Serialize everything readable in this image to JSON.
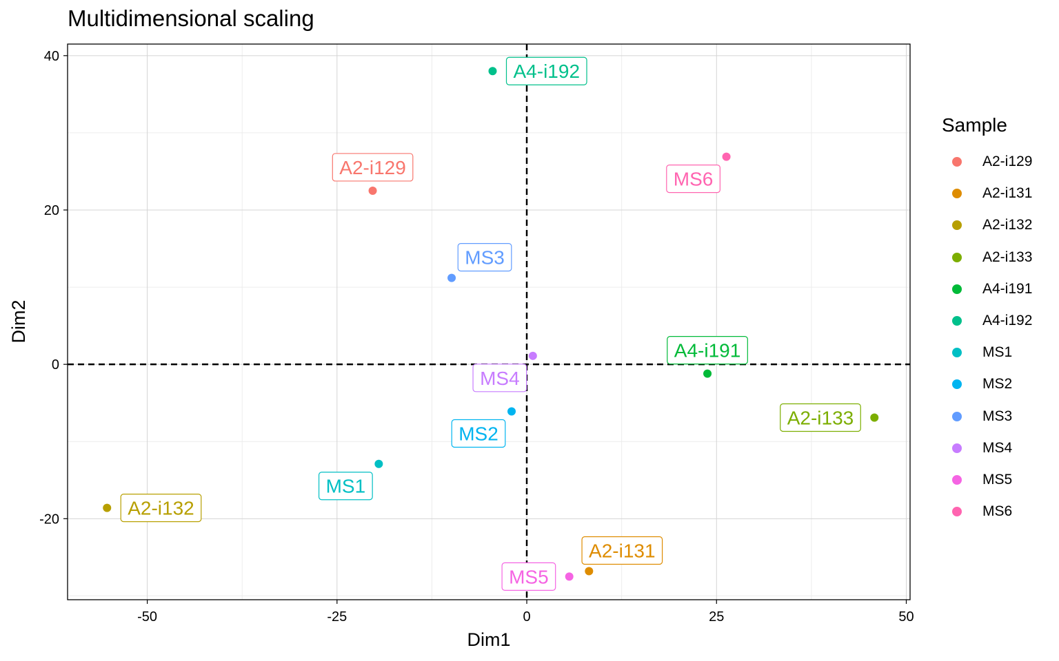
{
  "chart_data": {
    "type": "scatter",
    "title": "Multidimensional scaling",
    "xlabel": "Dim1",
    "ylabel": "Dim2",
    "xlim": [
      -60.5,
      50.5
    ],
    "ylim": [
      -30.5,
      41.5
    ],
    "x_ticks": [
      -50,
      -25,
      0,
      25,
      50
    ],
    "y_ticks": [
      -20,
      0,
      20,
      40
    ],
    "x_tick_labels": [
      "-50",
      "-25",
      "0",
      "25",
      "50"
    ],
    "y_tick_labels": [
      "-20",
      "0",
      "20",
      "40"
    ],
    "grid": true,
    "reference_lines": {
      "x": 0,
      "y": 0,
      "style": "dashed"
    },
    "legend_title": "Sample",
    "legend_position": "right",
    "points": [
      {
        "label": "A2-i129",
        "x": -20.3,
        "y": 22.5,
        "color": "#F8766D",
        "label_pos": "above"
      },
      {
        "label": "A2-i131",
        "x": 8.2,
        "y": -26.8,
        "color": "#DE8C00",
        "label_pos": "above-right"
      },
      {
        "label": "A2-i132",
        "x": -55.3,
        "y": -18.6,
        "color": "#B79F00",
        "label_pos": "right"
      },
      {
        "label": "A2-i133",
        "x": 45.8,
        "y": -6.9,
        "color": "#7CAE00",
        "label_pos": "left"
      },
      {
        "label": "A4-i191",
        "x": 23.8,
        "y": -1.2,
        "color": "#00BA38",
        "label_pos": "above"
      },
      {
        "label": "A4-i192",
        "x": -4.5,
        "y": 38.0,
        "color": "#00C08B",
        "label_pos": "right"
      },
      {
        "label": "MS1",
        "x": -19.5,
        "y": -12.9,
        "color": "#00BFC4",
        "label_pos": "below-left"
      },
      {
        "label": "MS2",
        "x": -2.0,
        "y": -6.1,
        "color": "#00B4F0",
        "label_pos": "below-left"
      },
      {
        "label": "MS3",
        "x": -9.9,
        "y": 11.2,
        "color": "#619CFF",
        "label_pos": "above-right"
      },
      {
        "label": "MS4",
        "x": 0.8,
        "y": 1.1,
        "color": "#C77CFF",
        "label_pos": "below-left"
      },
      {
        "label": "MS5",
        "x": 5.6,
        "y": -27.5,
        "color": "#F564E3",
        "label_pos": "left"
      },
      {
        "label": "MS6",
        "x": 26.3,
        "y": 26.9,
        "color": "#FF64B0",
        "label_pos": "below-left"
      }
    ]
  }
}
